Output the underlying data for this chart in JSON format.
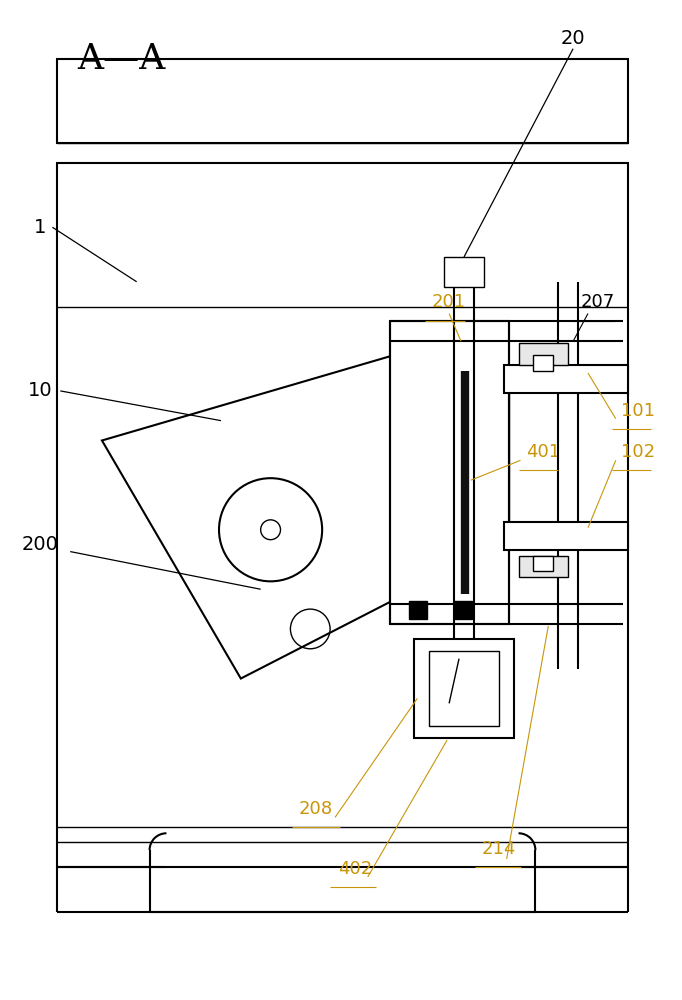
{
  "bg_color": "#ffffff",
  "line_color": "#000000",
  "figsize": [
    6.82,
    10.0
  ],
  "lw": 1.0,
  "lw_thick": 1.5
}
